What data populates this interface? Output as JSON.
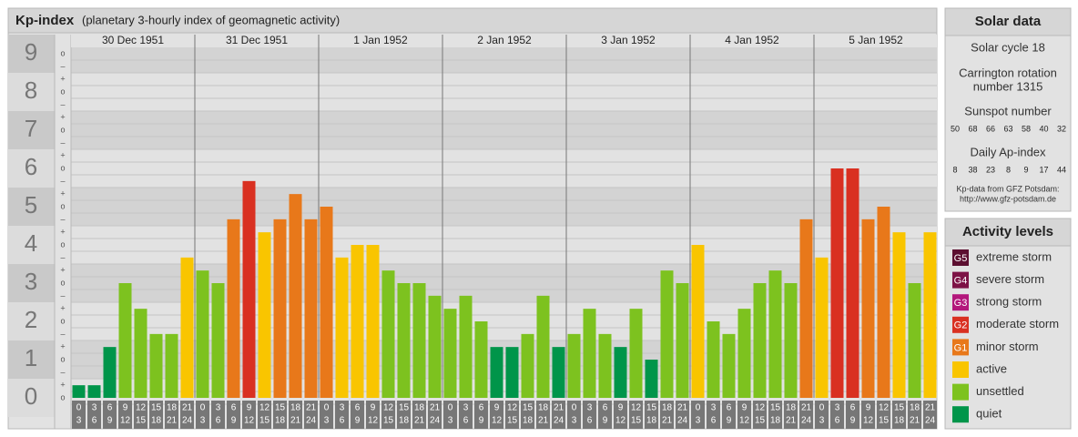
{
  "header": {
    "title": "Kp-index",
    "subtitle": "(planetary 3-hourly index of geomagnetic activity)"
  },
  "chart_data": {
    "type": "bar",
    "days": [
      "30 Dec 1951",
      "31 Dec 1951",
      "1 Jan 1952",
      "2 Jan 1952",
      "3 Jan 1952",
      "4 Jan 1952",
      "5 Jan 1952"
    ],
    "hours": [
      [
        "0",
        "3"
      ],
      [
        "3",
        "6"
      ],
      [
        "6",
        "9"
      ],
      [
        "9",
        "12"
      ],
      [
        "12",
        "15"
      ],
      [
        "15",
        "18"
      ],
      [
        "18",
        "21"
      ],
      [
        "21",
        "24"
      ]
    ],
    "values": [
      0.33,
      0.33,
      1.33,
      3,
      2.33,
      1.67,
      1.67,
      3.67,
      3.33,
      3,
      4.67,
      5.67,
      4.33,
      4.67,
      5.33,
      4.67,
      5,
      3.67,
      4,
      4,
      3.33,
      3,
      3,
      2.67,
      2.33,
      2.67,
      2,
      1.33,
      1.33,
      1.67,
      2.67,
      1.33,
      1.67,
      2.33,
      1.67,
      1.33,
      2.33,
      1,
      3.33,
      3,
      4,
      2,
      1.67,
      2.33,
      3,
      3.33,
      3,
      4.67,
      3.67,
      6,
      6,
      4.67,
      5,
      4.33,
      3,
      4.33
    ],
    "colors": [
      "#00954a",
      "#00954a",
      "#00954a",
      "#7dc21f",
      "#7dc21f",
      "#7dc21f",
      "#7dc21f",
      "#f9c500",
      "#7dc21f",
      "#7dc21f",
      "#e8781a",
      "#d93021",
      "#f9c500",
      "#e8781a",
      "#e8781a",
      "#e8781a",
      "#e8781a",
      "#f9c500",
      "#f9c500",
      "#f9c500",
      "#7dc21f",
      "#7dc21f",
      "#7dc21f",
      "#7dc21f",
      "#7dc21f",
      "#7dc21f",
      "#7dc21f",
      "#00954a",
      "#00954a",
      "#7dc21f",
      "#7dc21f",
      "#00954a",
      "#7dc21f",
      "#7dc21f",
      "#7dc21f",
      "#00954a",
      "#7dc21f",
      "#00954a",
      "#7dc21f",
      "#7dc21f",
      "#f9c500",
      "#7dc21f",
      "#7dc21f",
      "#7dc21f",
      "#7dc21f",
      "#7dc21f",
      "#7dc21f",
      "#e8781a",
      "#f9c500",
      "#d93021",
      "#d93021",
      "#e8781a",
      "#e8781a",
      "#f9c500",
      "#7dc21f",
      "#f9c500"
    ],
    "ylim": [
      0,
      9.5
    ],
    "yticks": [
      0,
      1,
      2,
      3,
      4,
      5,
      6,
      7,
      8,
      9
    ],
    "minor_tick_labels": [
      "–",
      "o",
      "+"
    ],
    "grid": true
  },
  "solar_data": {
    "title": "Solar data",
    "cycle": "Solar cycle 18",
    "carrington": [
      "Carrington rotation",
      "number 1315"
    ],
    "sunspot_title": "Sunspot number",
    "sunspots": [
      50,
      68,
      66,
      63,
      58,
      40,
      32
    ],
    "ap_title": "Daily Ap-index",
    "ap": [
      8,
      38,
      23,
      8,
      9,
      17,
      44
    ],
    "source": [
      "Kp-data from GFZ Potsdam:",
      "http://www.gfz-potsdam.de"
    ]
  },
  "activity_levels": {
    "title": "Activity levels",
    "items": [
      {
        "badge": "G5",
        "label": "extreme storm",
        "color": "#5c0f30"
      },
      {
        "badge": "G4",
        "label": "severe storm",
        "color": "#7d1245"
      },
      {
        "badge": "G3",
        "label": "strong storm",
        "color": "#b3177b"
      },
      {
        "badge": "G2",
        "label": "moderate storm",
        "color": "#d93021"
      },
      {
        "badge": "G1",
        "label": "minor storm",
        "color": "#e8781a"
      },
      {
        "label": "active",
        "color": "#f9c500"
      },
      {
        "label": "unsettled",
        "color": "#7dc21f"
      },
      {
        "label": "quiet",
        "color": "#00954a"
      }
    ]
  }
}
